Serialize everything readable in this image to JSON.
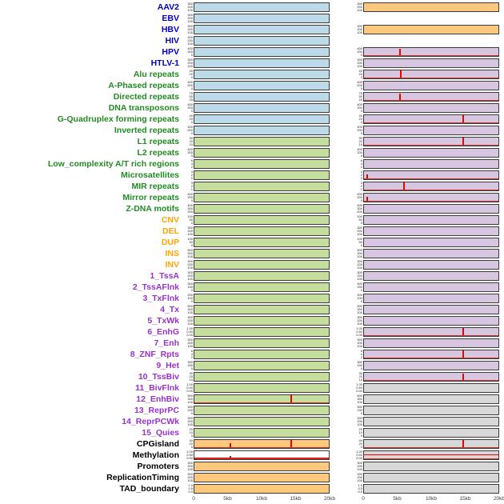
{
  "chart_data": {
    "type": "bar",
    "description": "Multi-track genomic feature figure: 44 feature rows, each with two mini track panels (left and right genomic window), x axis 0-20kb, red spikes mark feature signal peaks",
    "x_axis": {
      "ticks": [
        "0",
        "5kb",
        "10kb",
        "15kb",
        "20kb"
      ],
      "range_kb": [
        0,
        20
      ]
    },
    "palette": {
      "label_virus": "#0000CC",
      "label_repeat": "#228B22",
      "label_sv": "#FFA500",
      "label_state": "#9932CC",
      "label_other": "#000000",
      "panel_blue": "#BCDAE8",
      "panel_green": "#C5DE9E",
      "panel_orange": "#FCC87E",
      "panel_purple": "#D6C6E0",
      "panel_gray": "#D8D8D8",
      "panel_white": "#FFFFFF",
      "spike_red": "#EE0000"
    },
    "rows": [
      {
        "label": "AAV2",
        "group": "virus",
        "yticks": [
          "300",
          "200",
          "100"
        ],
        "left": {
          "bg": "blue",
          "spikes": []
        },
        "right": {
          "bg": "orange",
          "spikes": []
        }
      },
      {
        "label": "EBV",
        "group": "virus",
        "yticks": [
          "300",
          "200",
          "100"
        ],
        "left": {
          "bg": "blue",
          "spikes": []
        },
        "right": {
          "bg": "none",
          "spikes": []
        }
      },
      {
        "label": "HBV",
        "group": "virus",
        "yticks": [
          "300",
          "200",
          "100"
        ],
        "left": {
          "bg": "blue",
          "spikes": []
        },
        "right": {
          "bg": "orange",
          "spikes": []
        }
      },
      {
        "label": "HIV",
        "group": "virus",
        "yticks": [
          "300",
          "200",
          "100"
        ],
        "left": {
          "bg": "blue",
          "spikes": []
        },
        "right": {
          "bg": "none",
          "spikes": []
        }
      },
      {
        "label": "HPV",
        "group": "virus",
        "yticks": [
          "400",
          "200",
          "0"
        ],
        "left": {
          "bg": "blue",
          "spikes": []
        },
        "right": {
          "bg": "purple",
          "spikes": [
            {
              "x_kb": 5.2,
              "h": 0.8
            }
          ]
        }
      },
      {
        "label": "HTLV-1",
        "group": "virus",
        "yticks": [
          "300",
          "200",
          "100"
        ],
        "left": {
          "bg": "blue",
          "spikes": []
        },
        "right": {
          "bg": "purple",
          "spikes": []
        }
      },
      {
        "label": "Alu repeats",
        "group": "repeat",
        "yticks": [
          "40",
          "20",
          "0"
        ],
        "left": {
          "bg": "blue",
          "spikes": []
        },
        "right": {
          "bg": "purple",
          "spikes": [
            {
              "x_kb": 5.4,
              "h": 1.0
            }
          ]
        }
      },
      {
        "label": "A-Phased repeats",
        "group": "repeat",
        "yticks": [
          "400",
          "200",
          "0"
        ],
        "left": {
          "bg": "blue",
          "spikes": []
        },
        "right": {
          "bg": "purple",
          "spikes": []
        }
      },
      {
        "label": "Directed repeats",
        "group": "repeat",
        "yticks": [
          "75",
          "50",
          "25"
        ],
        "left": {
          "bg": "blue",
          "spikes": []
        },
        "right": {
          "bg": "purple",
          "spikes": [
            {
              "x_kb": 5.2,
              "h": 0.85
            }
          ]
        }
      },
      {
        "label": "DNA transposons",
        "group": "repeat",
        "yticks": [
          "400",
          "200",
          "0"
        ],
        "left": {
          "bg": "blue",
          "spikes": []
        },
        "right": {
          "bg": "purple",
          "spikes": []
        }
      },
      {
        "label": "G-Quadruplex forming repeats",
        "group": "repeat",
        "yticks": [
          "40",
          "20",
          "0"
        ],
        "left": {
          "bg": "blue",
          "spikes": []
        },
        "right": {
          "bg": "purple",
          "spikes": [
            {
              "x_kb": 14.6,
              "h": 1.0
            }
          ]
        }
      },
      {
        "label": "Inverted repeats",
        "group": "repeat",
        "yticks": [
          "400",
          "200",
          "0"
        ],
        "left": {
          "bg": "blue",
          "spikes": []
        },
        "right": {
          "bg": "purple",
          "spikes": []
        }
      },
      {
        "label": "L1 repeats",
        "group": "repeat",
        "yticks": [
          "30",
          "20",
          "10"
        ],
        "left": {
          "bg": "green",
          "spikes": []
        },
        "right": {
          "bg": "purple",
          "spikes": [
            {
              "x_kb": 14.6,
              "h": 1.0
            }
          ]
        }
      },
      {
        "label": "L2 repeats",
        "group": "repeat",
        "yticks": [
          "400",
          "200",
          "0"
        ],
        "left": {
          "bg": "green",
          "spikes": []
        },
        "right": {
          "bg": "purple",
          "spikes": []
        }
      },
      {
        "label": "Low_complexity A/T rich regions",
        "group": "repeat",
        "yticks": [
          "6",
          "4",
          "2"
        ],
        "left": {
          "bg": "green",
          "spikes": []
        },
        "right": {
          "bg": "purple",
          "spikes": []
        }
      },
      {
        "label": "Microsatellites",
        "group": "repeat",
        "yticks": [
          "4",
          "2",
          "0"
        ],
        "left": {
          "bg": "green",
          "spikes": []
        },
        "right": {
          "bg": "purple",
          "spikes": [
            {
              "x_kb": 0.4,
              "h": 0.55
            }
          ]
        }
      },
      {
        "label": "MIR repeats",
        "group": "repeat",
        "yticks": [
          "3",
          "2",
          "1"
        ],
        "left": {
          "bg": "green",
          "spikes": []
        },
        "right": {
          "bg": "purple",
          "spikes": [
            {
              "x_kb": 5.8,
              "h": 0.9
            }
          ]
        }
      },
      {
        "label": "Mirror repeats",
        "group": "repeat",
        "yticks": [
          "400",
          "200",
          "0"
        ],
        "left": {
          "bg": "green",
          "spikes": []
        },
        "right": {
          "bg": "purple",
          "spikes": [
            {
              "x_kb": 0.4,
              "h": 0.5
            }
          ]
        }
      },
      {
        "label": "Z-DNA motifs",
        "group": "repeat",
        "yticks": [
          "400",
          "300",
          "200"
        ],
        "left": {
          "bg": "green",
          "spikes": []
        },
        "right": {
          "bg": "purple",
          "spikes": []
        }
      },
      {
        "label": "CNV",
        "group": "sv",
        "yticks": [
          "100",
          "50",
          "0"
        ],
        "left": {
          "bg": "green",
          "spikes": []
        },
        "right": {
          "bg": "purple",
          "spikes": []
        }
      },
      {
        "label": "DEL",
        "group": "sv",
        "yticks": [
          "300",
          "200",
          "100"
        ],
        "left": {
          "bg": "green",
          "spikes": []
        },
        "right": {
          "bg": "purple",
          "spikes": []
        }
      },
      {
        "label": "DUP",
        "group": "sv",
        "yticks": [
          "100",
          "50",
          "0"
        ],
        "left": {
          "bg": "green",
          "spikes": []
        },
        "right": {
          "bg": "purple",
          "spikes": []
        }
      },
      {
        "label": "INS",
        "group": "sv",
        "yticks": [
          "500",
          "300",
          "100"
        ],
        "left": {
          "bg": "green",
          "spikes": []
        },
        "right": {
          "bg": "purple",
          "spikes": []
        }
      },
      {
        "label": "INV",
        "group": "sv",
        "yticks": [
          "300",
          "200",
          "100"
        ],
        "left": {
          "bg": "green",
          "spikes": []
        },
        "right": {
          "bg": "purple",
          "spikes": []
        }
      },
      {
        "label": "1_TssA",
        "group": "state",
        "yticks": [
          "300",
          "200",
          "100"
        ],
        "left": {
          "bg": "green",
          "spikes": []
        },
        "right": {
          "bg": "purple",
          "spikes": []
        }
      },
      {
        "label": "2_TssAFlnk",
        "group": "state",
        "yticks": [
          "300",
          "150",
          "0"
        ],
        "left": {
          "bg": "green",
          "spikes": []
        },
        "right": {
          "bg": "purple",
          "spikes": []
        }
      },
      {
        "label": "3_TxFlnk",
        "group": "state",
        "yticks": [
          "200",
          "100",
          "0"
        ],
        "left": {
          "bg": "green",
          "spikes": []
        },
        "right": {
          "bg": "purple",
          "spikes": []
        }
      },
      {
        "label": "4_Tx",
        "group": "state",
        "yticks": [
          "500",
          "300",
          "100"
        ],
        "left": {
          "bg": "green",
          "spikes": []
        },
        "right": {
          "bg": "purple",
          "spikes": []
        }
      },
      {
        "label": "5_TxWk",
        "group": "state",
        "yticks": [
          "300",
          "200",
          "100"
        ],
        "left": {
          "bg": "green",
          "spikes": []
        },
        "right": {
          "bg": "purple",
          "spikes": []
        }
      },
      {
        "label": "6_EnhG",
        "group": "state",
        "yticks": [
          "1.00",
          "0.50",
          "0.00"
        ],
        "left": {
          "bg": "green",
          "spikes": []
        },
        "right": {
          "bg": "purple",
          "spikes": [
            {
              "x_kb": 14.6,
              "h": 0.95
            }
          ]
        }
      },
      {
        "label": "7_Enh",
        "group": "state",
        "yticks": [
          "300",
          "200",
          "100"
        ],
        "left": {
          "bg": "green",
          "spikes": []
        },
        "right": {
          "bg": "purple",
          "spikes": []
        }
      },
      {
        "label": "8_ZNF_Rpts",
        "group": "state",
        "yticks": [
          "6",
          "4",
          "2"
        ],
        "left": {
          "bg": "green",
          "spikes": []
        },
        "right": {
          "bg": "purple",
          "spikes": [
            {
              "x_kb": 14.6,
              "h": 0.9
            }
          ]
        }
      },
      {
        "label": "9_Het",
        "group": "state",
        "yticks": [
          "300",
          "150",
          "0"
        ],
        "left": {
          "bg": "green",
          "spikes": []
        },
        "right": {
          "bg": "purple",
          "spikes": []
        }
      },
      {
        "label": "10_TssBiv",
        "group": "state",
        "yticks": [
          "30",
          "20",
          "10"
        ],
        "left": {
          "bg": "green",
          "spikes": []
        },
        "right": {
          "bg": "purple",
          "spikes": [
            {
              "x_kb": 14.6,
              "h": 0.85
            }
          ]
        }
      },
      {
        "label": "11_BivFlnk",
        "group": "state",
        "yticks": [
          "1.00",
          "0.50",
          "0.00"
        ],
        "left": {
          "bg": "green",
          "spikes": []
        },
        "right": {
          "bg": "gray",
          "spikes": []
        }
      },
      {
        "label": "12_EnhBiv",
        "group": "state",
        "yticks": [
          "500",
          "300",
          "100"
        ],
        "left": {
          "bg": "green",
          "spikes": [
            {
              "x_kb": 14.3,
              "h": 0.95
            }
          ]
        },
        "right": {
          "bg": "gray",
          "spikes": []
        }
      },
      {
        "label": "13_ReprPC",
        "group": "state",
        "yticks": [
          "300",
          "150",
          "0"
        ],
        "left": {
          "bg": "green",
          "spikes": []
        },
        "right": {
          "bg": "gray",
          "spikes": []
        }
      },
      {
        "label": "14_ReprPCWk",
        "group": "state",
        "yticks": [
          "300",
          "200",
          "100"
        ],
        "left": {
          "bg": "green",
          "spikes": []
        },
        "right": {
          "bg": "gray",
          "spikes": []
        }
      },
      {
        "label": "15_Quies",
        "group": "state",
        "yticks": [
          "20",
          "10",
          "0"
        ],
        "left": {
          "bg": "green",
          "spikes": []
        },
        "right": {
          "bg": "gray",
          "spikes": []
        }
      },
      {
        "label": "CPGisland",
        "group": "other",
        "yticks": [
          "40",
          "20",
          "0"
        ],
        "left": {
          "bg": "orange",
          "spikes": [
            {
              "x_kb": 5.2,
              "h": 0.5
            },
            {
              "x_kb": 14.3,
              "h": 0.95
            }
          ]
        },
        "right": {
          "bg": "gray",
          "spikes": [
            {
              "x_kb": 14.6,
              "h": 0.9
            }
          ]
        }
      },
      {
        "label": "Methylation",
        "group": "other",
        "yticks": [
          "1.00",
          "0.50",
          "0.00"
        ],
        "left": {
          "bg": "white",
          "spikes": [
            {
              "x_kb": 5.2,
              "h": 0.3
            }
          ],
          "trace": {
            "y": 0.12
          }
        },
        "right": {
          "bg": "gray",
          "spikes": [],
          "trace": {
            "y": 0.55
          }
        }
      },
      {
        "label": "Promoters",
        "group": "other",
        "yticks": [
          "300",
          "200",
          "100"
        ],
        "left": {
          "bg": "orange",
          "spikes": []
        },
        "right": {
          "bg": "gray",
          "spikes": []
        }
      },
      {
        "label": "ReplicationTiming",
        "group": "other",
        "yticks": [
          "300",
          "200",
          "100"
        ],
        "left": {
          "bg": "orange",
          "spikes": []
        },
        "right": {
          "bg": "gray",
          "spikes": []
        }
      },
      {
        "label": "TAD_boundary",
        "group": "other",
        "yticks": [
          "1.0",
          "0.5",
          "0.0"
        ],
        "left": {
          "bg": "orange",
          "spikes": []
        },
        "right": {
          "bg": "gray",
          "spikes": []
        }
      }
    ]
  }
}
